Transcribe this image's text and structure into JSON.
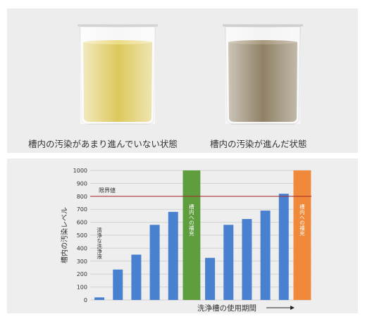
{
  "photos": {
    "left_caption": "槽内の汚染があまり進んでいない状態",
    "right_caption": "槽内の汚染が進んだ状態",
    "left_liquid_color": "#d9c24a",
    "right_liquid_color": "#8a7b5e"
  },
  "chart_data": {
    "type": "bar",
    "ylabel": "槽内の汚染レベル",
    "xlabel": "洗浄槽の使用期間",
    "ylim": [
      0,
      1000
    ],
    "yticks": [
      0,
      100,
      200,
      300,
      400,
      500,
      600,
      700,
      800,
      900,
      1000
    ],
    "threshold": {
      "label": "限界値",
      "value": 800,
      "color": "#a52a2a"
    },
    "bar_color": "#4a80d0",
    "series": [
      {
        "values": [
          20,
          235,
          350,
          580,
          680,
          null,
          325,
          580,
          625,
          690,
          820,
          null
        ]
      }
    ],
    "annotations": [
      {
        "slot": 0,
        "text": "清浄な洗浄液",
        "type": "label"
      },
      {
        "slot": 5,
        "text": "槽内への補充",
        "type": "band",
        "color": "#5e9e3e"
      },
      {
        "slot": 11,
        "text": "槽内への補充",
        "type": "band",
        "color": "#f08a3a"
      }
    ],
    "grid": "horizontal",
    "arrow": "right"
  }
}
